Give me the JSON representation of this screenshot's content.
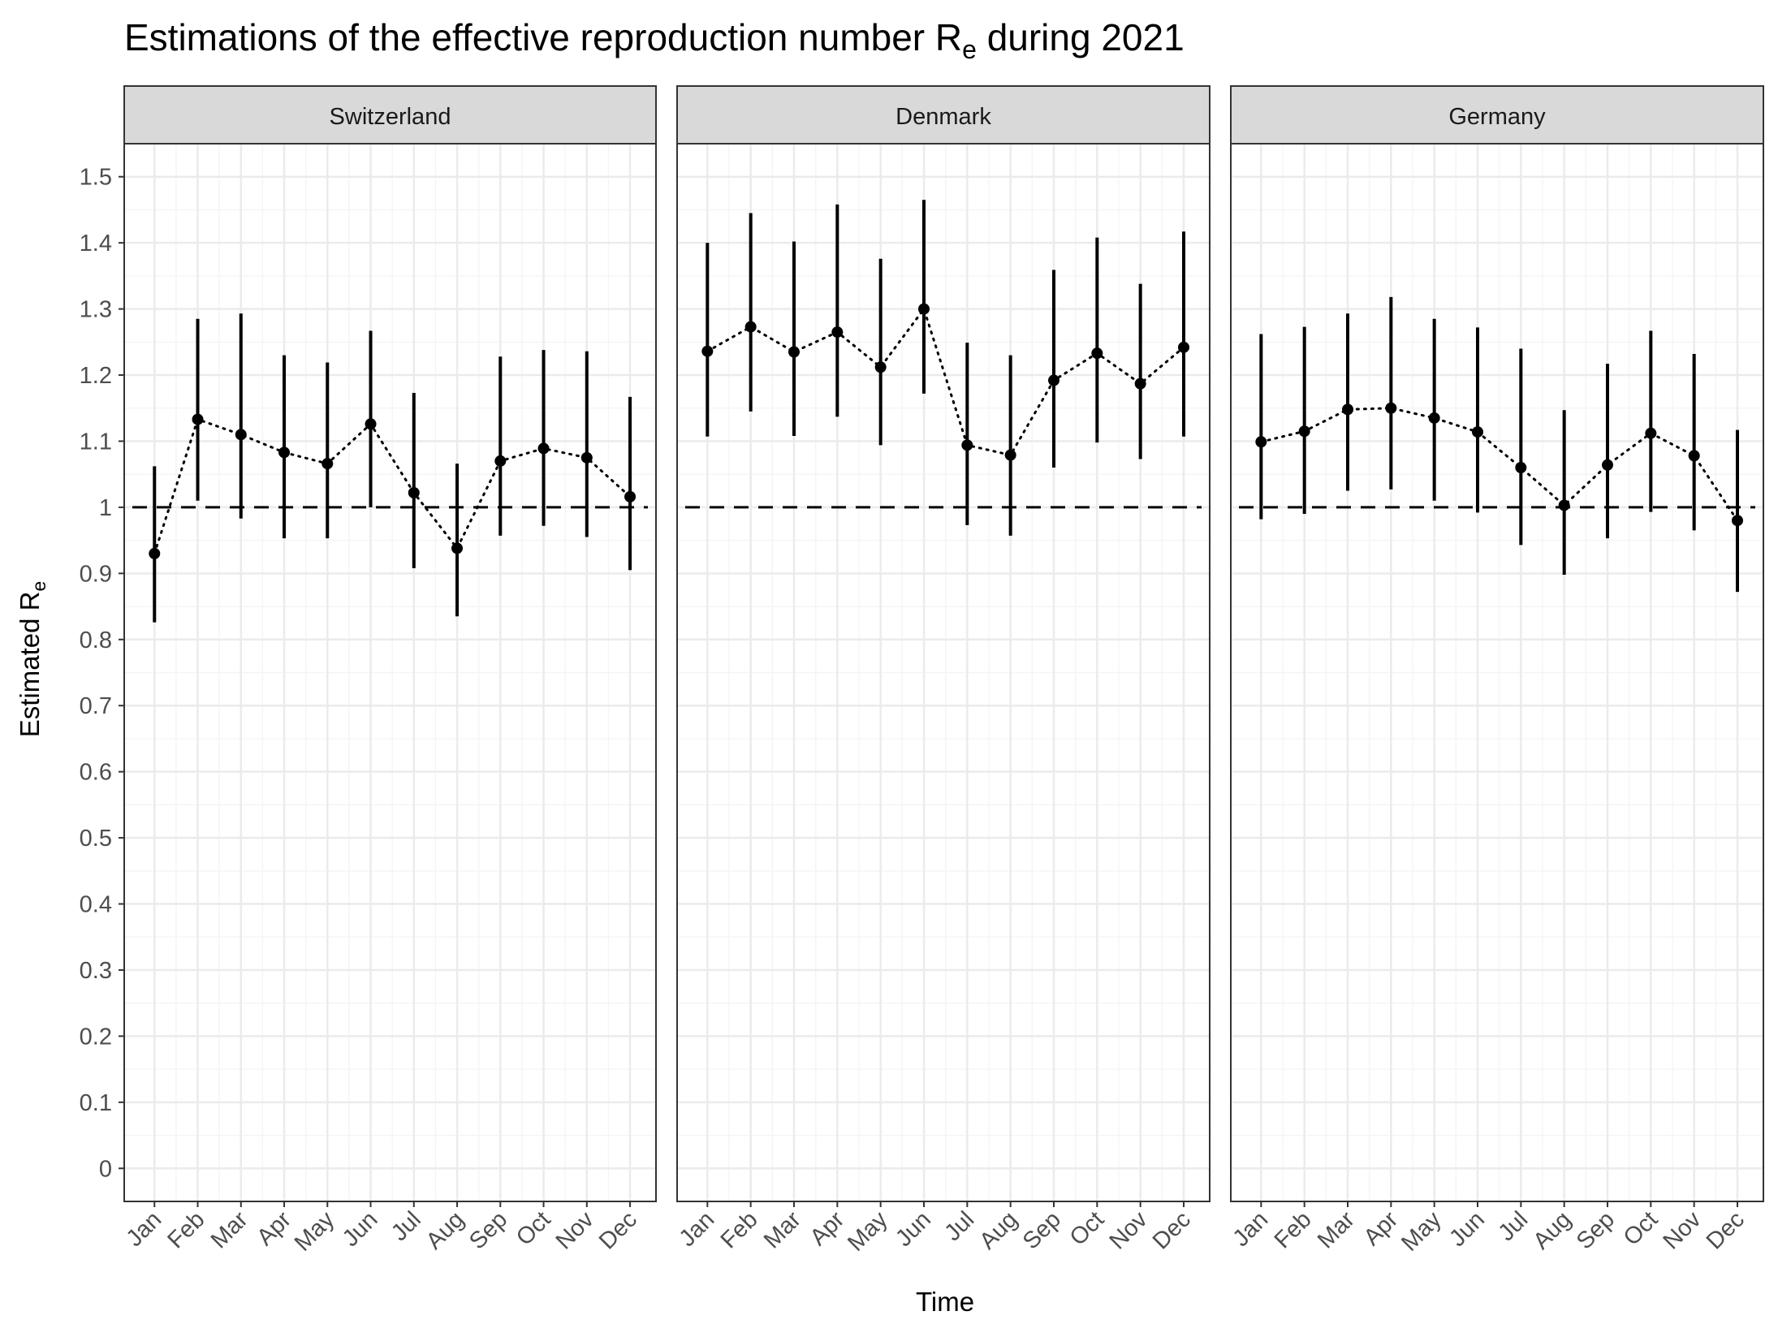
{
  "title": {
    "main": "Estimations of the effective reproduction number R",
    "sub": "e",
    "rest": " during 2021"
  },
  "axes": {
    "ylabel_main": "Estimated R",
    "ylabel_sub": "e",
    "xlabel": "Time"
  },
  "colors": {
    "strip_fill": "#d9d9d9",
    "panel_border": "#333333",
    "grid_major": "#ebebeb",
    "grid_minor": "#f5f5f5",
    "ink": "#000000"
  },
  "chart_data": {
    "type": "scatter",
    "facets": [
      "Switzerland",
      "Denmark",
      "Germany"
    ],
    "categories": [
      "Jan",
      "Feb",
      "Mar",
      "Apr",
      "May",
      "Jun",
      "Jul",
      "Aug",
      "Sep",
      "Oct",
      "Nov",
      "Dec"
    ],
    "ylim": [
      -0.05,
      1.55
    ],
    "yticks": [
      0,
      0.1,
      0.2,
      0.3,
      0.4,
      0.5,
      0.6,
      0.7,
      0.8,
      0.9,
      1,
      1.1,
      1.2,
      1.3,
      1.4,
      1.5
    ],
    "ytick_labels": [
      "0",
      "0.1",
      "0.2",
      "0.3",
      "0.4",
      "0.5",
      "0.6",
      "0.7",
      "0.8",
      "0.9",
      "1",
      "1.1",
      "1.2",
      "1.3",
      "1.4",
      "1.5"
    ],
    "reference_line": 1,
    "grid": true,
    "series": [
      {
        "facet": "Switzerland",
        "estimate": [
          0.93,
          1.133,
          1.11,
          1.083,
          1.066,
          1.126,
          1.022,
          0.938,
          1.07,
          1.089,
          1.075,
          1.016
        ],
        "lower": [
          0.826,
          1.01,
          0.983,
          0.953,
          0.953,
          1.0,
          0.908,
          0.835,
          0.957,
          0.972,
          0.955,
          0.905
        ],
        "upper": [
          1.062,
          1.285,
          1.293,
          1.23,
          1.219,
          1.267,
          1.173,
          1.066,
          1.228,
          1.238,
          1.236,
          1.167
        ]
      },
      {
        "facet": "Denmark",
        "estimate": [
          1.236,
          1.273,
          1.235,
          1.265,
          1.212,
          1.3,
          1.094,
          1.079,
          1.192,
          1.233,
          1.187,
          1.242
        ],
        "lower": [
          1.107,
          1.145,
          1.108,
          1.137,
          1.094,
          1.172,
          0.973,
          0.957,
          1.06,
          1.098,
          1.073,
          1.107
        ],
        "upper": [
          1.4,
          1.445,
          1.402,
          1.458,
          1.376,
          1.465,
          1.249,
          1.23,
          1.359,
          1.408,
          1.338,
          1.417
        ]
      },
      {
        "facet": "Germany",
        "estimate": [
          1.099,
          1.115,
          1.148,
          1.15,
          1.135,
          1.114,
          1.06,
          1.003,
          1.064,
          1.112,
          1.078,
          0.98
        ],
        "lower": [
          0.982,
          0.99,
          1.025,
          1.027,
          1.01,
          0.992,
          0.943,
          0.898,
          0.953,
          0.993,
          0.965,
          0.872
        ],
        "upper": [
          1.262,
          1.273,
          1.293,
          1.318,
          1.285,
          1.272,
          1.24,
          1.147,
          1.217,
          1.267,
          1.232,
          1.117
        ]
      }
    ]
  }
}
